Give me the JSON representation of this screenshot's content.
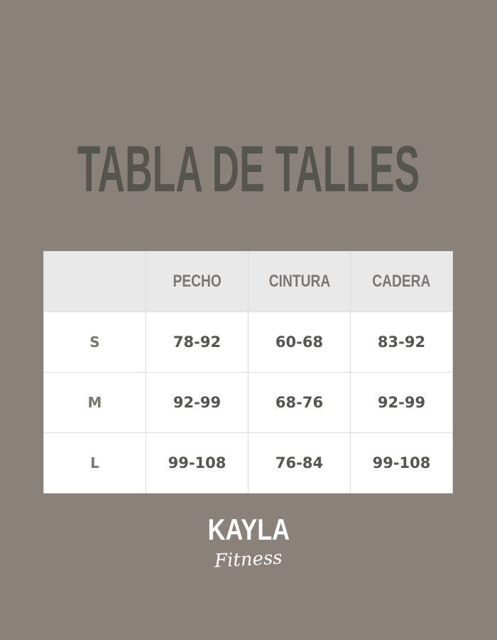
{
  "title": "TABLA DE TALLES",
  "table": {
    "headers": [
      "",
      "PECHO",
      "CINTURA",
      "CADERA"
    ],
    "rows": [
      {
        "size": "S",
        "pecho": "78-92",
        "cintura": "60-68",
        "cadera": "83-92"
      },
      {
        "size": "M",
        "pecho": "92-99",
        "cintura": "68-76",
        "cadera": "92-99"
      },
      {
        "size": "L",
        "pecho": "99-108",
        "cintura": "76-84",
        "cadera": "99-108"
      }
    ]
  },
  "brand": {
    "name": "KAYLA",
    "tagline": "Fitness"
  },
  "colors": {
    "background": "#8a817b",
    "title": "#56544f",
    "header_bg": "#e9e9e9"
  }
}
